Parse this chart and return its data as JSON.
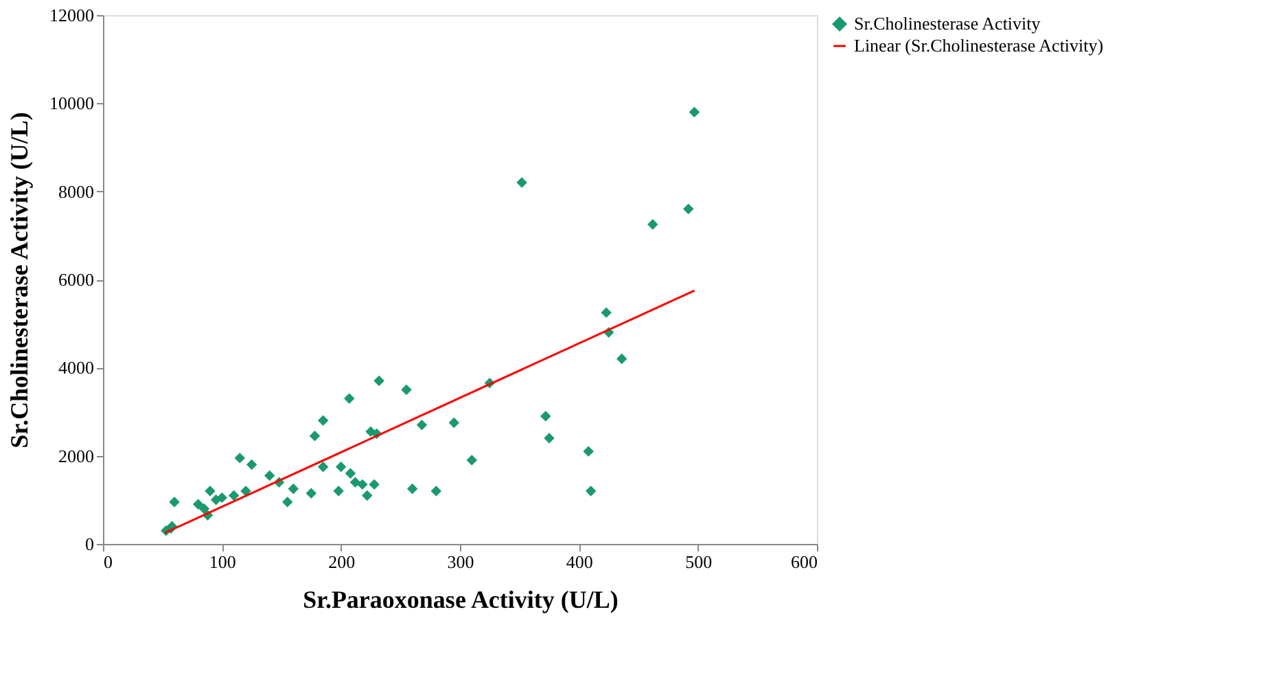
{
  "chart_data": {
    "type": "scatter",
    "xlabel": "Sr.Paraoxonase Activity (U/L)",
    "ylabel": "Sr.Cholinesterase Activity (U/L)",
    "xlim": [
      0,
      600
    ],
    "xticks": [
      0,
      100,
      200,
      300,
      400,
      500,
      600
    ],
    "ylim": [
      0,
      12000
    ],
    "yticks": [
      0,
      2000,
      4000,
      6000,
      8000,
      10000,
      12000
    ],
    "grid": false,
    "legend": "right",
    "series": [
      {
        "name": "Sr.Cholinesterase Activity",
        "marker": "diamond",
        "color": "#1a9a6c",
        "x": [
          53,
          57,
          60,
          58,
          80,
          85,
          90,
          88,
          95,
          100,
          110,
          115,
          120,
          125,
          140,
          148,
          155,
          160,
          175,
          178,
          185,
          185,
          198,
          200,
          207,
          208,
          212,
          218,
          222,
          225,
          228,
          230,
          232,
          255,
          260,
          268,
          280,
          295,
          310,
          325,
          352,
          372,
          375,
          408,
          410,
          423,
          425,
          436,
          462,
          492,
          497
        ],
        "values": [
          300,
          350,
          950,
          400,
          900,
          800,
          1200,
          650,
          1000,
          1050,
          1100,
          1950,
          1200,
          1800,
          1550,
          1400,
          950,
          1250,
          1150,
          2450,
          2800,
          1750,
          1200,
          1750,
          3300,
          1600,
          1400,
          1350,
          1100,
          2550,
          1350,
          2500,
          3700,
          3500,
          1250,
          2700,
          1200,
          2750,
          1900,
          3650,
          8200,
          2900,
          2400,
          2100,
          1200,
          5250,
          4800,
          4200,
          7250,
          7600,
          9800
        ]
      },
      {
        "name": "Linear (Sr.Cholinesterase Activity)",
        "type": "line",
        "marker": "none",
        "line_style": "solid",
        "color": "#ff0000",
        "x": [
          52,
          497
        ],
        "values": [
          250,
          5750
        ]
      }
    ]
  }
}
